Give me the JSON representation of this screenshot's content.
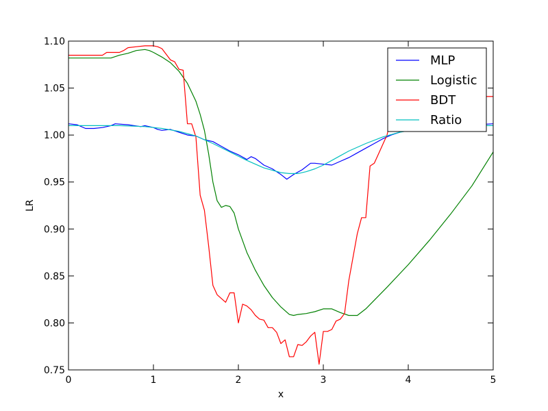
{
  "chart_data": {
    "type": "line",
    "title": "",
    "xlabel": "x",
    "ylabel": "LR",
    "xlim": [
      0,
      5
    ],
    "ylim": [
      0.75,
      1.1
    ],
    "xticks": [
      "0",
      "1",
      "2",
      "3",
      "4",
      "5"
    ],
    "yticks": [
      "0.75",
      "0.80",
      "0.85",
      "0.90",
      "0.95",
      "1.00",
      "1.05",
      "1.10"
    ],
    "grid": false,
    "legend_position": "top-right",
    "series": [
      {
        "name": "MLP",
        "color": "#0000ff",
        "x": [
          0,
          0.1,
          0.2,
          0.3,
          0.4,
          0.5,
          0.55,
          0.7,
          0.85,
          0.9,
          1.0,
          1.05,
          1.1,
          1.2,
          1.3,
          1.4,
          1.5,
          1.6,
          1.7,
          1.8,
          1.9,
          2.0,
          2.1,
          2.15,
          2.2,
          2.3,
          2.4,
          2.5,
          2.57,
          2.65,
          2.75,
          2.85,
          2.9,
          3.0,
          3.1,
          3.2,
          3.3,
          3.4,
          3.5,
          3.6,
          3.7,
          3.8,
          3.9,
          4.0,
          4.2,
          4.5,
          4.8,
          5.0
        ],
        "y": [
          1.012,
          1.011,
          1.007,
          1.007,
          1.008,
          1.01,
          1.012,
          1.011,
          1.009,
          1.01,
          1.008,
          1.006,
          1.005,
          1.006,
          1.003,
          1.0,
          0.999,
          0.995,
          0.993,
          0.988,
          0.983,
          0.979,
          0.974,
          0.977,
          0.975,
          0.968,
          0.964,
          0.958,
          0.953,
          0.958,
          0.963,
          0.97,
          0.97,
          0.969,
          0.968,
          0.972,
          0.976,
          0.981,
          0.986,
          0.991,
          0.996,
          1.0,
          1.003,
          1.006,
          1.01,
          1.011,
          1.011,
          1.012
        ]
      },
      {
        "name": "Logistic",
        "color": "#008000",
        "x": [
          0,
          0.3,
          0.5,
          0.6,
          0.7,
          0.8,
          0.9,
          0.95,
          1.0,
          1.1,
          1.2,
          1.3,
          1.4,
          1.5,
          1.55,
          1.6,
          1.65,
          1.7,
          1.75,
          1.8,
          1.85,
          1.9,
          1.95,
          2.0,
          2.1,
          2.2,
          2.3,
          2.4,
          2.5,
          2.6,
          2.65,
          2.7,
          2.8,
          2.9,
          3.0,
          3.1,
          3.2,
          3.3,
          3.4,
          3.5,
          3.75,
          4.0,
          4.25,
          4.5,
          4.75,
          5.0
        ],
        "y": [
          1.082,
          1.082,
          1.082,
          1.085,
          1.087,
          1.09,
          1.091,
          1.09,
          1.088,
          1.083,
          1.077,
          1.068,
          1.055,
          1.036,
          1.022,
          1.005,
          0.98,
          0.95,
          0.93,
          0.923,
          0.925,
          0.924,
          0.917,
          0.9,
          0.875,
          0.856,
          0.84,
          0.827,
          0.817,
          0.809,
          0.808,
          0.809,
          0.81,
          0.812,
          0.815,
          0.815,
          0.811,
          0.808,
          0.808,
          0.815,
          0.838,
          0.862,
          0.888,
          0.916,
          0.946,
          0.982
        ]
      },
      {
        "name": "BDT",
        "color": "#ff0000",
        "x": [
          0,
          0.2,
          0.4,
          0.45,
          0.6,
          0.65,
          0.7,
          0.8,
          0.9,
          1.0,
          1.05,
          1.1,
          1.2,
          1.25,
          1.3,
          1.35,
          1.4,
          1.45,
          1.5,
          1.55,
          1.6,
          1.65,
          1.7,
          1.75,
          1.8,
          1.85,
          1.9,
          1.95,
          2.0,
          2.05,
          2.1,
          2.15,
          2.2,
          2.25,
          2.3,
          2.35,
          2.4,
          2.45,
          2.5,
          2.55,
          2.6,
          2.65,
          2.7,
          2.75,
          2.8,
          2.85,
          2.9,
          2.95,
          3.0,
          3.05,
          3.1,
          3.15,
          3.2,
          3.25,
          3.3,
          3.35,
          3.4,
          3.45,
          3.5,
          3.55,
          3.6,
          3.65,
          3.7,
          3.75,
          3.8,
          3.85,
          3.9,
          3.95,
          4.0,
          4.3,
          4.6,
          5.0
        ],
        "y": [
          1.085,
          1.085,
          1.085,
          1.088,
          1.088,
          1.09,
          1.093,
          1.094,
          1.095,
          1.095,
          1.094,
          1.092,
          1.08,
          1.078,
          1.07,
          1.069,
          1.012,
          1.012,
          0.998,
          0.936,
          0.92,
          0.882,
          0.84,
          0.83,
          0.826,
          0.822,
          0.832,
          0.832,
          0.8,
          0.82,
          0.818,
          0.814,
          0.808,
          0.804,
          0.803,
          0.795,
          0.795,
          0.79,
          0.778,
          0.782,
          0.764,
          0.764,
          0.777,
          0.776,
          0.78,
          0.786,
          0.79,
          0.756,
          0.791,
          0.791,
          0.793,
          0.802,
          0.804,
          0.81,
          0.845,
          0.87,
          0.895,
          0.912,
          0.912,
          0.967,
          0.97,
          0.98,
          0.99,
          1.0,
          1.02,
          1.03,
          1.035,
          1.038,
          1.041,
          1.041,
          1.041,
          1.041
        ]
      },
      {
        "name": "Ratio",
        "color": "#00bfbf",
        "x": [
          0,
          0.3,
          0.6,
          0.9,
          1.1,
          1.3,
          1.5,
          1.7,
          1.9,
          2.1,
          2.3,
          2.5,
          2.6,
          2.7,
          2.8,
          2.9,
          3.0,
          3.1,
          3.2,
          3.3,
          3.4,
          3.5,
          3.7,
          3.9,
          4.1,
          4.4,
          4.7,
          5.0
        ],
        "y": [
          1.01,
          1.01,
          1.01,
          1.009,
          1.007,
          1.004,
          0.999,
          0.991,
          0.982,
          0.973,
          0.965,
          0.96,
          0.959,
          0.959,
          0.961,
          0.964,
          0.968,
          0.973,
          0.978,
          0.983,
          0.987,
          0.991,
          0.998,
          1.003,
          1.006,
          1.009,
          1.01,
          1.01
        ]
      }
    ]
  }
}
